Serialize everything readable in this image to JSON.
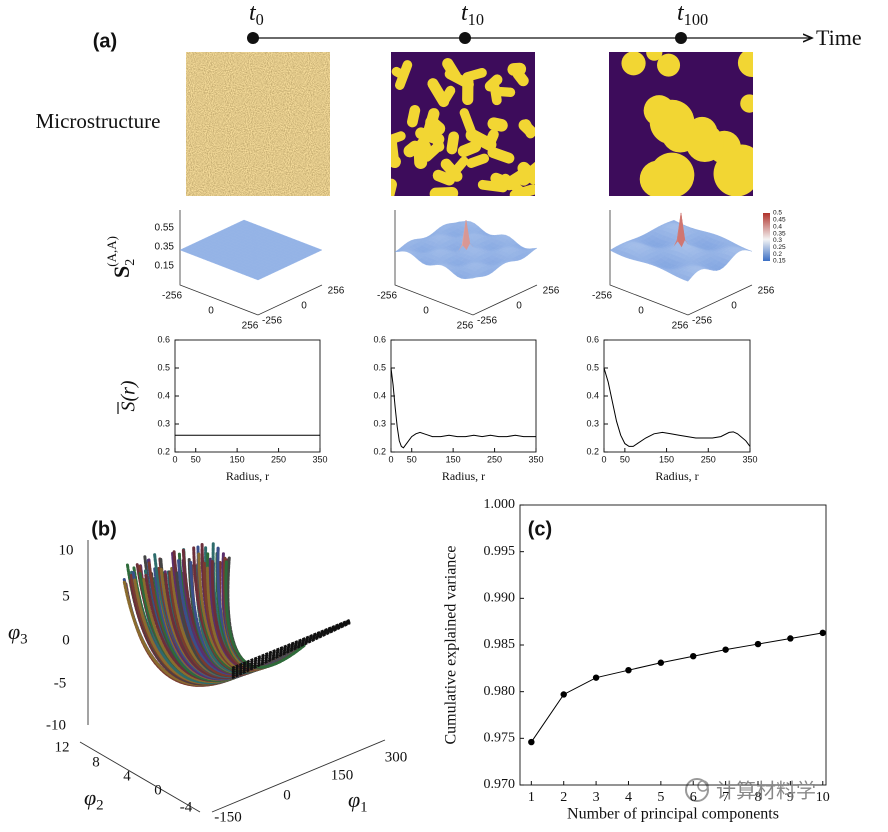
{
  "figure": {
    "panel_labels": [
      "(a)",
      "(b)",
      "(c)"
    ],
    "timeline": {
      "points": [
        {
          "symbol": "t",
          "sub": "0"
        },
        {
          "symbol": "t",
          "sub": "10"
        },
        {
          "symbol": "t",
          "sub": "100"
        }
      ],
      "label": "Time"
    },
    "row_label": "Microstructure",
    "s2": {
      "symbol": "S",
      "sub": "2",
      "sup": "(A,A)",
      "z_ticks": [
        0.55,
        0.35,
        0.15
      ],
      "x_ticks": [
        -256,
        0,
        256
      ],
      "y_ticks": [
        -256,
        0,
        256
      ],
      "colorbar_ticks": [
        0.5,
        0.45,
        0.4,
        0.35,
        0.3,
        0.25,
        0.2,
        0.15
      ]
    },
    "scatter3d": {
      "axes": [
        {
          "symbol": "φ",
          "sub": "1",
          "ticks": [
            -150,
            0,
            150,
            300
          ]
        },
        {
          "symbol": "φ",
          "sub": "2",
          "ticks": [
            12,
            8,
            4,
            0,
            -4
          ]
        },
        {
          "symbol": "φ",
          "sub": "3",
          "ticks": [
            10,
            5,
            0,
            -5,
            -10
          ]
        }
      ]
    },
    "watermark": "计算材料学"
  },
  "chart_data": [
    {
      "type": "line",
      "y_label": "S(r)",
      "x_label": "Radius, r",
      "color": "#000000",
      "x": [
        0,
        350
      ],
      "values": [
        0.26,
        0.26
      ],
      "xlim": [
        0,
        350
      ],
      "ylim": [
        0.2,
        0.6
      ],
      "xticks": [
        0,
        50,
        150,
        250,
        350
      ],
      "yticks": [
        0.2,
        0.3,
        0.4,
        0.5,
        0.6
      ]
    },
    {
      "type": "line",
      "x_label": "Radius, r",
      "color": "#000000",
      "x": [
        0,
        5,
        10,
        15,
        20,
        25,
        30,
        40,
        50,
        60,
        70,
        80,
        90,
        100,
        120,
        140,
        160,
        180,
        200,
        220,
        240,
        260,
        280,
        300,
        320,
        350
      ],
      "values": [
        0.5,
        0.44,
        0.36,
        0.29,
        0.24,
        0.22,
        0.215,
        0.235,
        0.255,
        0.265,
        0.27,
        0.265,
        0.26,
        0.255,
        0.255,
        0.26,
        0.255,
        0.255,
        0.26,
        0.255,
        0.26,
        0.255,
        0.255,
        0.26,
        0.255,
        0.255
      ],
      "xlim": [
        0,
        350
      ],
      "ylim": [
        0.2,
        0.6
      ],
      "xticks": [
        0,
        50,
        150,
        250,
        350
      ],
      "yticks": [
        0.2,
        0.3,
        0.4,
        0.5,
        0.6
      ]
    },
    {
      "type": "line",
      "x_label": "Radius, r",
      "color": "#000000",
      "x": [
        0,
        10,
        20,
        30,
        40,
        50,
        60,
        70,
        80,
        100,
        120,
        140,
        160,
        180,
        200,
        220,
        240,
        260,
        280,
        300,
        310,
        320,
        340,
        350
      ],
      "values": [
        0.5,
        0.45,
        0.38,
        0.31,
        0.26,
        0.23,
        0.22,
        0.22,
        0.23,
        0.25,
        0.265,
        0.27,
        0.265,
        0.26,
        0.255,
        0.25,
        0.25,
        0.25,
        0.255,
        0.27,
        0.272,
        0.265,
        0.24,
        0.22
      ],
      "xlim": [
        0,
        350
      ],
      "ylim": [
        0.2,
        0.6
      ],
      "xticks": [
        0,
        50,
        150,
        250,
        350
      ],
      "yticks": [
        0.2,
        0.3,
        0.4,
        0.5,
        0.6
      ]
    },
    {
      "type": "line",
      "markers": true,
      "y_label": "Cumulative explained variance",
      "x_label": "Number of principal components",
      "color": "#000000",
      "x": [
        1,
        2,
        3,
        4,
        5,
        6,
        7,
        8,
        9,
        10
      ],
      "values": [
        0.9746,
        0.9797,
        0.9815,
        0.9823,
        0.9831,
        0.9838,
        0.9845,
        0.9851,
        0.9857,
        0.9863
      ],
      "xlim": [
        0.65,
        10.1
      ],
      "ylim": [
        0.97,
        1.0
      ],
      "xticks": [
        1,
        2,
        3,
        4,
        5,
        6,
        7,
        8,
        9,
        10
      ],
      "yticks": [
        {
          "value": 0.97,
          "label": "0.970"
        },
        {
          "value": 0.975,
          "label": "0.975"
        },
        {
          "value": 0.98,
          "label": "0.980"
        },
        {
          "value": 0.985,
          "label": "0.985"
        },
        {
          "value": 0.99,
          "label": "0.990"
        },
        {
          "value": 0.995,
          "label": "0.995"
        },
        {
          "value": 1.0,
          "label": "1.000"
        }
      ]
    }
  ]
}
